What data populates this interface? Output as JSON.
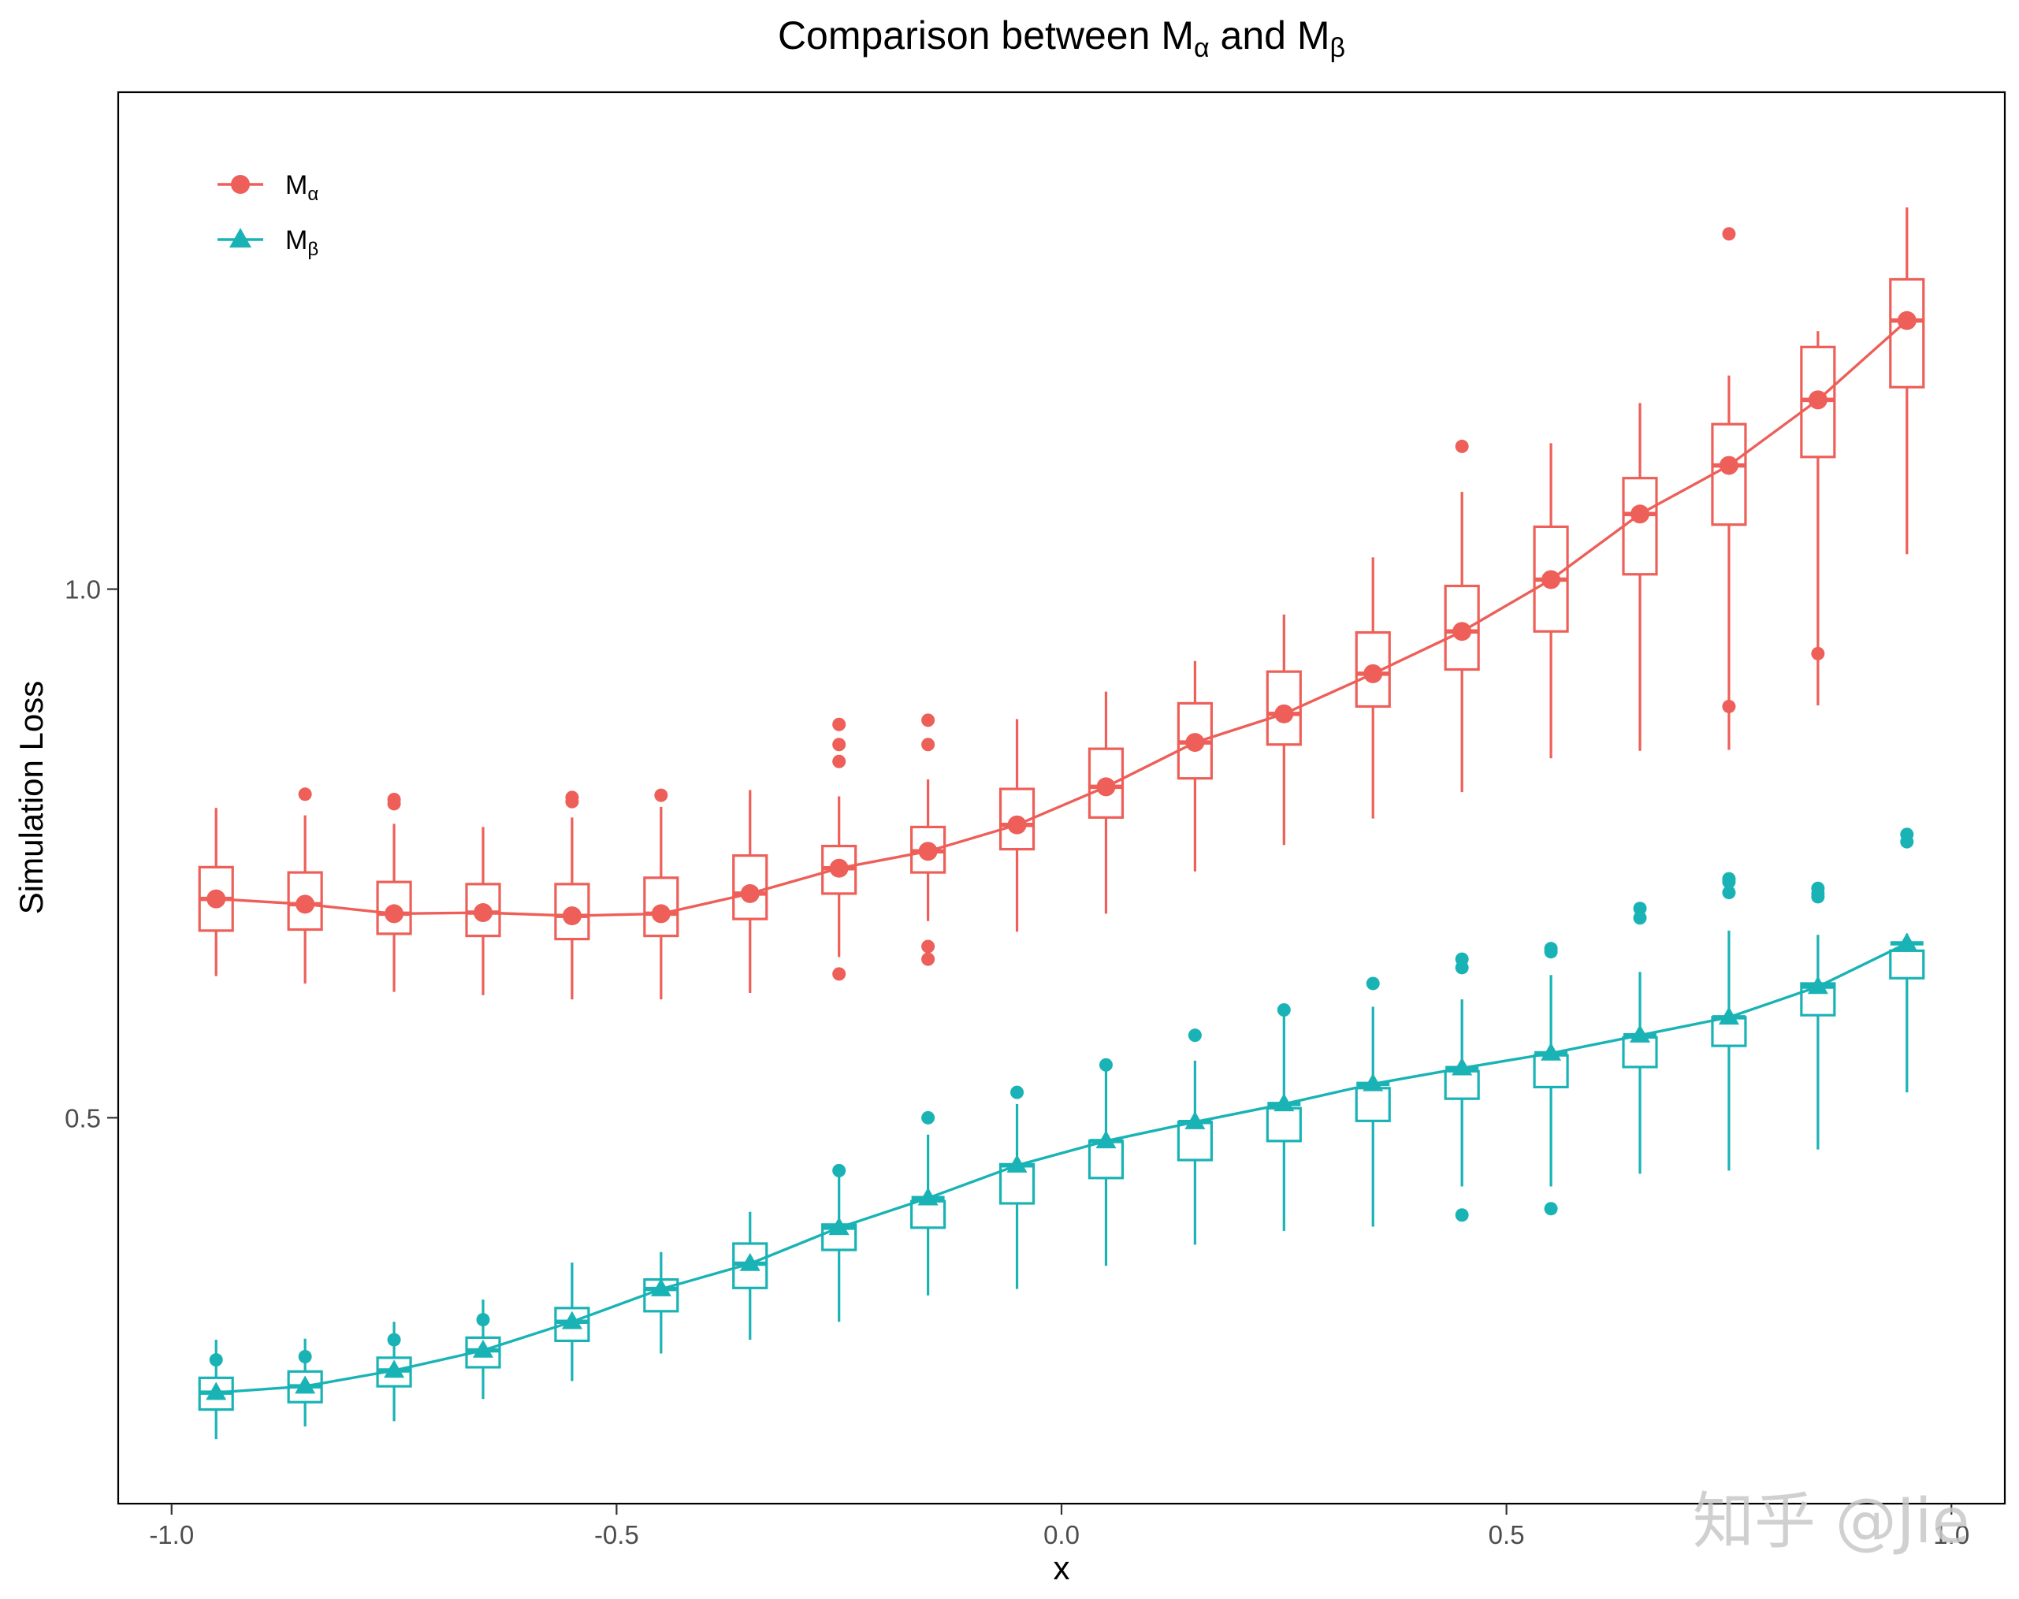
{
  "watermark": "知乎 @Jie",
  "chart_data": {
    "type": "box",
    "title": "Comparison between Mα and Mβ",
    "title_main": "Comparison between M",
    "title_sub_a": "α",
    "title_mid": " and M",
    "title_sub_b": "β",
    "xlabel": "x",
    "ylabel": "Simulation Loss",
    "xlim": [
      -1.06,
      1.06
    ],
    "ylim": [
      0.135,
      1.47
    ],
    "xticks": [
      -1.0,
      -0.5,
      0.0,
      0.5,
      1.0
    ],
    "xtick_labels": [
      "-1.0",
      "-0.5",
      "0.0",
      "0.5",
      "1.0"
    ],
    "yticks": [
      0.5,
      1.0
    ],
    "ytick_labels": [
      "0.5",
      "1.0"
    ],
    "grid": false,
    "legend_position": "top-left",
    "x": [
      -0.95,
      -0.85,
      -0.75,
      -0.65,
      -0.55,
      -0.45,
      -0.35,
      -0.25,
      -0.15,
      -0.05,
      0.05,
      0.15,
      0.25,
      0.35,
      0.45,
      0.55,
      0.65,
      0.75,
      0.85,
      0.95
    ],
    "series": [
      {
        "name": "Mα",
        "legend_main": "M",
        "legend_sub": "α",
        "color": "#ed5f58",
        "marker": "circle",
        "mean": [
          0.707,
          0.702,
          0.693,
          0.694,
          0.691,
          0.693,
          0.712,
          0.736,
          0.752,
          0.777,
          0.813,
          0.855,
          0.882,
          0.92,
          0.96,
          1.009,
          1.071,
          1.117,
          1.179,
          1.254
        ],
        "median": [
          0.707,
          0.702,
          0.693,
          0.694,
          0.691,
          0.693,
          0.712,
          0.736,
          0.752,
          0.777,
          0.813,
          0.855,
          0.882,
          0.92,
          0.96,
          1.009,
          1.071,
          1.117,
          1.179,
          1.254
        ],
        "q1": [
          0.677,
          0.678,
          0.674,
          0.672,
          0.669,
          0.672,
          0.688,
          0.712,
          0.732,
          0.754,
          0.784,
          0.821,
          0.853,
          0.889,
          0.924,
          0.96,
          1.014,
          1.061,
          1.125,
          1.191
        ],
        "q3": [
          0.737,
          0.732,
          0.723,
          0.721,
          0.721,
          0.727,
          0.748,
          0.757,
          0.775,
          0.811,
          0.849,
          0.892,
          0.922,
          0.959,
          1.003,
          1.059,
          1.105,
          1.156,
          1.229,
          1.293
        ],
        "whisker_low": [
          0.634,
          0.627,
          0.619,
          0.616,
          0.612,
          0.612,
          0.618,
          0.652,
          0.686,
          0.676,
          0.693,
          0.733,
          0.758,
          0.783,
          0.808,
          0.84,
          0.847,
          0.848,
          0.89,
          1.033
        ],
        "whisker_high": [
          0.793,
          0.786,
          0.778,
          0.775,
          0.784,
          0.794,
          0.81,
          0.804,
          0.82,
          0.877,
          0.903,
          0.932,
          0.976,
          1.03,
          1.092,
          1.138,
          1.176,
          1.202,
          1.244,
          1.361
        ],
        "outliers": [
          [],
          [
            0.806
          ],
          [
            0.801,
            0.797
          ],
          [],
          [
            0.803,
            0.799
          ],
          [
            0.805
          ],
          [],
          [
            0.872,
            0.853,
            0.837,
            0.636
          ],
          [
            0.876,
            0.853,
            0.662,
            0.65
          ],
          [],
          [],
          [],
          [],
          [],
          [
            1.135
          ],
          [],
          [],
          [
            1.336,
            0.889
          ],
          [
            0.939
          ],
          []
        ]
      },
      {
        "name": "Mβ",
        "legend_main": "M",
        "legend_sub": "β",
        "color": "#1ab3b5",
        "marker": "triangle",
        "mean": [
          0.24,
          0.246,
          0.261,
          0.28,
          0.307,
          0.338,
          0.362,
          0.396,
          0.424,
          0.455,
          0.478,
          0.496,
          0.513,
          0.532,
          0.547,
          0.561,
          0.578,
          0.595,
          0.624,
          0.665
        ],
        "median": [
          0.24,
          0.246,
          0.261,
          0.28,
          0.307,
          0.338,
          0.362,
          0.396,
          0.424,
          0.455,
          0.478,
          0.496,
          0.513,
          0.532,
          0.547,
          0.561,
          0.578,
          0.595,
          0.624,
          0.665
        ],
        "q1": [
          0.224,
          0.231,
          0.246,
          0.264,
          0.289,
          0.317,
          0.339,
          0.375,
          0.396,
          0.419,
          0.443,
          0.46,
          0.478,
          0.497,
          0.518,
          0.529,
          0.548,
          0.568,
          0.597,
          0.632
        ],
        "q3": [
          0.254,
          0.26,
          0.273,
          0.292,
          0.32,
          0.347,
          0.381,
          0.399,
          0.421,
          0.456,
          0.478,
          0.496,
          0.509,
          0.528,
          0.544,
          0.559,
          0.576,
          0.595,
          0.627,
          0.658
        ],
        "whisker_low": [
          0.196,
          0.208,
          0.213,
          0.234,
          0.251,
          0.277,
          0.29,
          0.307,
          0.332,
          0.338,
          0.36,
          0.38,
          0.393,
          0.397,
          0.435,
          0.435,
          0.447,
          0.45,
          0.47,
          0.524
        ],
        "whisker_high": [
          0.29,
          0.291,
          0.307,
          0.328,
          0.363,
          0.373,
          0.411,
          0.444,
          0.484,
          0.513,
          0.545,
          0.554,
          0.596,
          0.605,
          0.612,
          0.635,
          0.638,
          0.677,
          0.673,
          0.674
        ],
        "outliers": [
          [
            0.271
          ],
          [
            0.274
          ],
          [
            0.29
          ],
          [
            0.309
          ],
          [],
          [],
          [],
          [
            0.45
          ],
          [
            0.5
          ],
          [
            0.524
          ],
          [
            0.55
          ],
          [
            0.578
          ],
          [
            0.602
          ],
          [
            0.627
          ],
          [
            0.65,
            0.642,
            0.408
          ],
          [
            0.657,
            0.66,
            0.414
          ],
          [
            0.689,
            0.698
          ],
          [
            0.726,
            0.713,
            0.723
          ],
          [
            0.712,
            0.717,
            0.709
          ],
          [
            0.761,
            0.768
          ]
        ]
      }
    ]
  }
}
